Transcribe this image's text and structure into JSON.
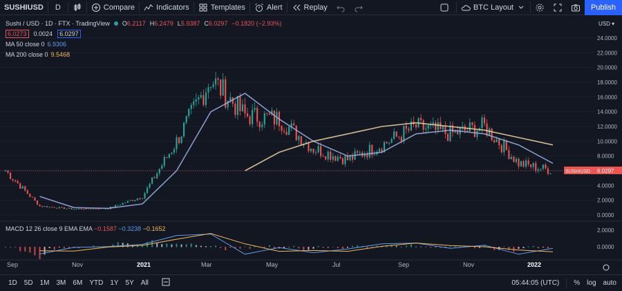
{
  "toolbar": {
    "symbol": "SUSHIUSD",
    "interval": "D",
    "compare": "Compare",
    "indicators": "Indicators",
    "templates": "Templates",
    "alert": "Alert",
    "replay": "Replay",
    "layout": "BTC Layout",
    "publish": "Publish"
  },
  "legend": {
    "title": "Sushi / USD · 1D · FTX · TradingView",
    "o_lbl": "O",
    "o": "6.2117",
    "h_lbl": "H",
    "h": "6.2479",
    "l_lbl": "L",
    "l": "5.9387",
    "c_lbl": "C",
    "c": "6.0297",
    "chg": "−0.1820 (−2.93%)",
    "bid": "6.0273",
    "spread": "0.0024",
    "ask": "6.0297",
    "ma50_label": "MA 50 close 0",
    "ma50_value": "6.9306",
    "ma200_label": "MA 200 close 0",
    "ma200_value": "9.5468"
  },
  "macd": {
    "label": "MACD 12 26 close 9 EMA EMA",
    "hist": "−0.1587",
    "macd": "−0.3238",
    "signal": "−0.1652"
  },
  "price_axis": {
    "currency": "USD",
    "ticks": [
      "24.0000",
      "22.0000",
      "20.0000",
      "18.0000",
      "16.0000",
      "14.0000",
      "12.0000",
      "10.0000",
      "8.0000",
      "6.0000",
      "4.0000",
      "2.0000",
      "0.0000"
    ],
    "macd_ticks": [
      "2.0000",
      "0.0000"
    ],
    "last_label": "SUSHIUSD",
    "last_value": "6.0297"
  },
  "time_axis": [
    "Sep",
    "Nov",
    "2021",
    "Mar",
    "May",
    "Jul",
    "Sep",
    "Nov",
    "2022"
  ],
  "bottom": {
    "ranges": [
      "1D",
      "5D",
      "1M",
      "3M",
      "6M",
      "YTD",
      "1Y",
      "5Y",
      "All"
    ],
    "clock": "05:44:05 (UTC)",
    "pct": "%",
    "log": "log",
    "auto": "auto"
  },
  "chart_data": {
    "type": "line",
    "x": [
      "2020-09",
      "2020-10",
      "2020-11",
      "2020-12",
      "2021-01",
      "2021-02",
      "2021-03",
      "2021-04",
      "2021-05",
      "2021-06",
      "2021-07",
      "2021-08",
      "2021-09",
      "2021-10",
      "2021-11",
      "2021-12",
      "2022-01"
    ],
    "series": [
      {
        "values": [
          6.0,
          1.2,
          0.8,
          0.9,
          2.5,
          10.0,
          18.5,
          13.5,
          13.0,
          9.0,
          7.5,
          9.5,
          12.0,
          11.0,
          12.0,
          7.0,
          6.0
        ]
      },
      {
        "name": "MA 50 close 0",
        "values": [
          null,
          2.5,
          1.0,
          0.9,
          1.5,
          6.0,
          14.0,
          16.5,
          13.0,
          10.0,
          8.0,
          8.5,
          11.0,
          11.5,
          11.0,
          9.5,
          7.0
        ]
      },
      {
        "name": "MA 200 close 0",
        "values": [
          null,
          null,
          null,
          null,
          null,
          null,
          null,
          6.0,
          8.5,
          10.0,
          11.0,
          12.0,
          12.5,
          12.0,
          11.5,
          10.5,
          9.5
        ]
      }
    ],
    "ylim": [
      0,
      24
    ]
  }
}
